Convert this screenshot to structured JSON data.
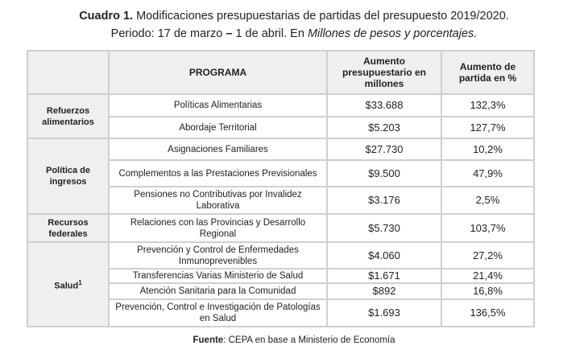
{
  "title": {
    "bold": "Cuadro 1.",
    "rest": " Modificaciones presupuestarias de partidas del presupuesto 2019/2020.",
    "line2_a": "Periodo: 17 de marzo ",
    "dash": "–",
    "line2_b": " 1 de abril.",
    "line2_c": " En ",
    "line2_italic": "Millones de pesos y porcentajes."
  },
  "headers": {
    "blank": "",
    "programa": "PROGRAMA",
    "aumento": "Aumento presupuestario en millones",
    "porcentaje": "Aumento de partida en %"
  },
  "groups": [
    {
      "name": "Refuerzos alimentarios",
      "rows": [
        {
          "programa": "Políticas Alimentarias",
          "monto": "$33.688",
          "pct": "132,3%"
        },
        {
          "programa": "Abordaje Territorial",
          "monto": "$5.203",
          "pct": "127,7%"
        }
      ]
    },
    {
      "name": "Política de ingresos",
      "rows": [
        {
          "programa": "Asignaciones Familiares",
          "monto": "$27.730",
          "pct": "10,2%"
        },
        {
          "programa": "Complementos a las Prestaciones Previsionales",
          "monto": "$9.500",
          "pct": "47,9%"
        },
        {
          "programa": "Pensiones no Contributivas por Invalidez Laborativa",
          "monto": "$3.176",
          "pct": "2,5%"
        }
      ]
    },
    {
      "name": "Recursos federales",
      "rows": [
        {
          "programa": "Relaciones con las Provincias y Desarrollo Regional",
          "monto": "$5.730",
          "pct": "103,7%"
        }
      ]
    },
    {
      "name": "Salud",
      "sup": "1",
      "rows": [
        {
          "programa": "Prevención y Control de Enfermedades Inmunoprevenibles",
          "monto": "$4.060",
          "pct": "27,2%"
        },
        {
          "programa": "Transferencias Varias Ministerio de Salud",
          "monto": "$1.671",
          "pct": "21,4%"
        },
        {
          "programa": "Atención Sanitaria para la Comunidad",
          "monto": "$892",
          "pct": "16,8%"
        },
        {
          "programa": "Prevención, Control e Investigación de Patologías en Salud",
          "monto": "$1.693",
          "pct": "136,5%"
        }
      ]
    }
  ],
  "source": {
    "label": "Fuente",
    "text": ": CEPA en base a Ministerio de Economía"
  }
}
